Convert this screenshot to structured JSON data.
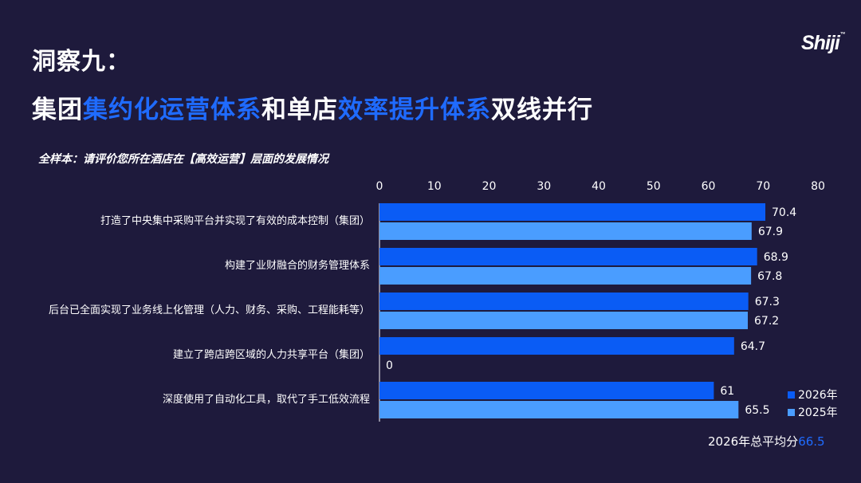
{
  "slide": {
    "title_line1": "洞察九：",
    "title_line2_parts": [
      {
        "text": "集团",
        "highlight": false
      },
      {
        "text": "集约化运营体系",
        "highlight": true
      },
      {
        "text": "和单店",
        "highlight": false
      },
      {
        "text": "效率提升体系",
        "highlight": true
      },
      {
        "text": "双线并行",
        "highlight": false
      }
    ],
    "logo_text": "Shiji",
    "logo_mark": "™",
    "survey_question": "全样本：请评价您所在酒店在【高效运营】层面的发展情况",
    "average_label": "2026年总平均分",
    "average_value": "66.5"
  },
  "colors": {
    "background": "#1e1a3c",
    "highlight": "#1f6bff",
    "series_2026": "#0a5cf5",
    "series_2025": "#4a9dff"
  },
  "chart_data": {
    "type": "bar",
    "orientation": "horizontal",
    "categories": [
      "打造了中央集中采购平台并实现了有效的成本控制（集团）",
      "构建了业财融合的财务管理体系",
      "后台已全面实现了业务线上化管理（人力、财务、采购、工程能耗等）",
      "建立了跨店跨区域的人力共享平台（集团）",
      "深度使用了自动化工具，取代了手工低效流程"
    ],
    "series": [
      {
        "name": "2026年",
        "values": [
          70.4,
          68.9,
          67.3,
          64.7,
          61
        ]
      },
      {
        "name": "2025年",
        "values": [
          67.9,
          67.8,
          67.2,
          0,
          65.5
        ]
      }
    ],
    "xlim": [
      0,
      80
    ],
    "ticks": [
      0,
      10,
      20,
      30,
      40,
      50,
      60,
      70,
      80
    ],
    "axis_position": "top",
    "grid": false,
    "legend": "bottom-right"
  }
}
